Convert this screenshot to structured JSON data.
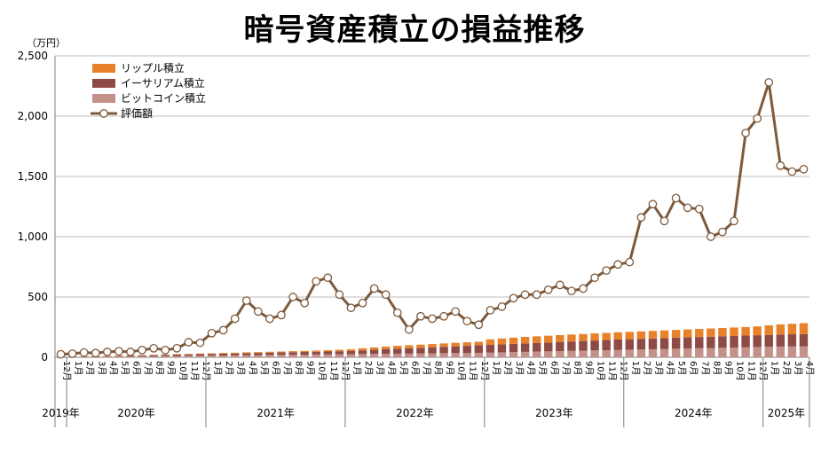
{
  "title": "暗号資産積立の損益推移",
  "unit": "（万円）",
  "chart_data": {
    "type": "bar+line",
    "title": "暗号資産積立の損益推移",
    "ylabel": "（万円）",
    "ylim": [
      0,
      2500
    ],
    "yticks": [
      "0",
      "500",
      "1,000",
      "1,500",
      "2,000",
      "2,500"
    ],
    "grid": "horizontal",
    "legend_position": "top-left",
    "months": [
      "12月",
      "1月",
      "2月",
      "3月",
      "4月",
      "5月",
      "6月",
      "7月",
      "8月",
      "9月",
      "10月",
      "11月",
      "12月",
      "1月",
      "2月",
      "3月",
      "4月",
      "5月",
      "6月",
      "7月",
      "8月",
      "9月",
      "10月",
      "11月",
      "12月",
      "1月",
      "2月",
      "3月",
      "4月",
      "5月",
      "6月",
      "7月",
      "8月",
      "9月",
      "10月",
      "11月",
      "12月",
      "1月",
      "2月",
      "3月",
      "4月",
      "5月",
      "6月",
      "7月",
      "8月",
      "9月",
      "10月",
      "11月",
      "12月",
      "1月",
      "2月",
      "3月",
      "4月",
      "5月",
      "6月",
      "7月",
      "8月",
      "9月",
      "10月",
      "11月",
      "12月",
      "1月",
      "2月",
      "3月",
      "4月"
    ],
    "years": [
      {
        "label": "2019年",
        "start": 0,
        "count": 1
      },
      {
        "label": "2020年",
        "start": 1,
        "count": 12
      },
      {
        "label": "2021年",
        "start": 13,
        "count": 12
      },
      {
        "label": "2022年",
        "start": 25,
        "count": 12
      },
      {
        "label": "2023年",
        "start": 37,
        "count": 12
      },
      {
        "label": "2024年",
        "start": 49,
        "count": 12
      },
      {
        "label": "2025年",
        "start": 61,
        "count": 4
      }
    ],
    "series": [
      {
        "name": "ビットコイン積立",
        "color": "#c4908a",
        "type": "bar",
        "values": [
          1,
          2,
          3,
          4,
          5,
          6,
          7,
          8,
          9,
          10,
          11,
          12,
          13,
          14,
          15,
          16,
          17,
          18,
          19,
          20,
          21,
          22,
          23,
          24,
          25,
          26,
          27,
          28,
          29,
          30,
          31,
          32,
          33,
          34,
          35,
          36,
          37,
          39,
          41,
          43,
          45,
          47,
          49,
          51,
          53,
          55,
          57,
          59,
          61,
          63,
          65,
          67,
          69,
          71,
          73,
          75,
          77,
          79,
          81,
          83,
          85,
          87,
          89,
          90,
          90
        ]
      },
      {
        "name": "イーサリアム積立",
        "color": "#8e4a44",
        "type": "bar",
        "values": [
          1,
          2,
          3,
          4,
          5,
          6,
          7,
          8,
          9,
          10,
          11,
          12,
          13,
          14,
          15,
          16,
          17,
          18,
          19,
          20,
          21,
          22,
          23,
          24,
          25,
          27,
          30,
          34,
          38,
          41,
          44,
          47,
          50,
          53,
          56,
          59,
          62,
          64,
          66,
          68,
          70,
          72,
          74,
          76,
          78,
          80,
          82,
          84,
          86,
          87,
          88,
          89,
          90,
          91,
          92,
          93,
          94,
          95,
          96,
          97,
          98,
          99,
          100,
          101,
          102
        ]
      },
      {
        "name": "リップル積立",
        "color": "#e8822a",
        "type": "bar",
        "values": [
          0,
          0,
          0,
          1,
          1,
          2,
          2,
          2,
          3,
          3,
          4,
          4,
          5,
          5,
          6,
          6,
          7,
          7,
          8,
          8,
          9,
          9,
          10,
          11,
          12,
          14,
          18,
          20,
          22,
          24,
          25,
          26,
          27,
          28,
          29,
          30,
          30,
          46,
          49,
          52,
          54,
          55,
          56,
          57,
          58,
          58,
          59,
          59,
          60,
          61,
          62,
          63,
          64,
          65,
          66,
          67,
          68,
          69,
          70,
          71,
          73,
          79,
          84,
          87,
          91
        ]
      },
      {
        "name": "評価額",
        "color": "#7d5a3c",
        "type": "line",
        "values": [
          25,
          30,
          40,
          35,
          45,
          50,
          45,
          60,
          75,
          60,
          75,
          125,
          120,
          200,
          225,
          320,
          470,
          380,
          320,
          350,
          500,
          450,
          630,
          660,
          520,
          410,
          450,
          570,
          520,
          370,
          230,
          340,
          320,
          340,
          380,
          300,
          270,
          390,
          420,
          490,
          520,
          520,
          560,
          600,
          550,
          570,
          660,
          720,
          770,
          790,
          1160,
          1270,
          1130,
          1320,
          1240,
          1230,
          1000,
          1040,
          1130,
          1860,
          1980,
          2280,
          1590,
          1540,
          1560
        ]
      }
    ]
  }
}
